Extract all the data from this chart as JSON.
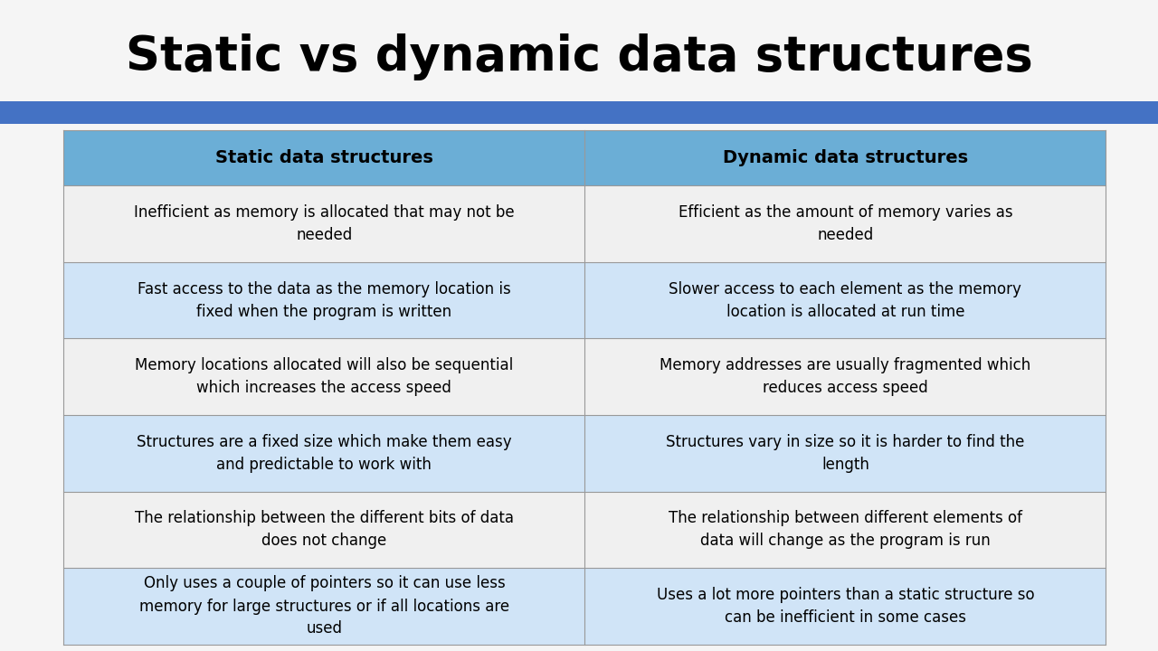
{
  "title": "Static vs dynamic data structures",
  "title_fontsize": 38,
  "title_color": "#000000",
  "background_color": "#f5f5f5",
  "header_bg_color": "#6baed6",
  "header_text_color": "#000000",
  "header_fontsize": 14,
  "cell_fontsize": 12,
  "cell_text_color": "#000000",
  "row_alt_color": "#d0e4f7",
  "row_normal_color": "#f0f0f0",
  "border_color": "#999999",
  "blue_bar_color": "#4472c4",
  "headers": [
    "Static data structures",
    "Dynamic data structures"
  ],
  "rows_wrapped": [
    [
      "Inefficient as memory is allocated that may not be\nneeded",
      "Efficient as the amount of memory varies as\nneeded"
    ],
    [
      "Fast access to the data as the memory location is\nfixed when the program is written",
      "Slower access to each element as the memory\nlocation is allocated at run time"
    ],
    [
      "Memory locations allocated will also be sequential\nwhich increases the access speed",
      "Memory addresses are usually fragmented which\nreduces access speed"
    ],
    [
      "Structures are a fixed size which make them easy\nand predictable to work with",
      "Structures vary in size so it is harder to find the\nlength"
    ],
    [
      "The relationship between the different bits of data\ndoes not change",
      "The relationship between different elements of\ndata will change as the program is run"
    ],
    [
      "Only uses a couple of pointers so it can use less\nmemory for large structures or if all locations are\nused",
      "Uses a lot more pointers than a static structure so\ncan be inefficient in some cases"
    ]
  ]
}
